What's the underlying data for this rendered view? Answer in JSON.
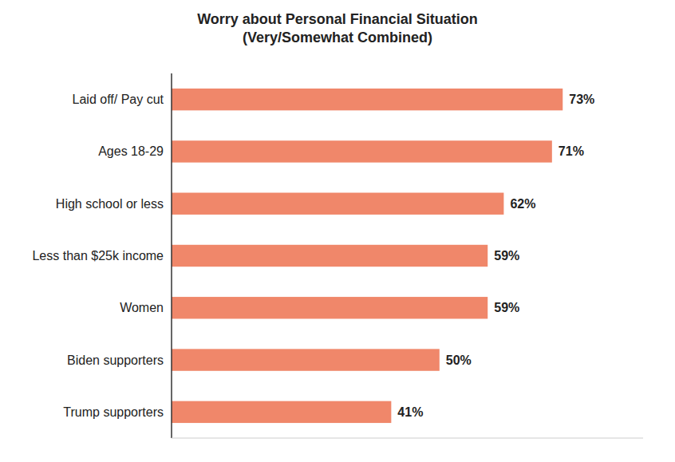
{
  "chart_data": {
    "type": "bar",
    "orientation": "horizontal",
    "title": "Worry about Personal Financial Situation\n(Very/Somewhat Combined)",
    "categories": [
      "Trump supporters",
      "Biden supporters",
      "Women",
      "Less than $25k income",
      "High school or less",
      "Ages 18-29",
      "Laid off/ Pay cut"
    ],
    "values": [
      41,
      50,
      59,
      59,
      62,
      71,
      73
    ],
    "value_labels": [
      "41%",
      "50%",
      "59%",
      "59%",
      "62%",
      "71%",
      "73%"
    ],
    "color": "#F0876A",
    "xlim": [
      0,
      88
    ],
    "data_labels": true,
    "tick_labels": "y",
    "grid": false
  }
}
